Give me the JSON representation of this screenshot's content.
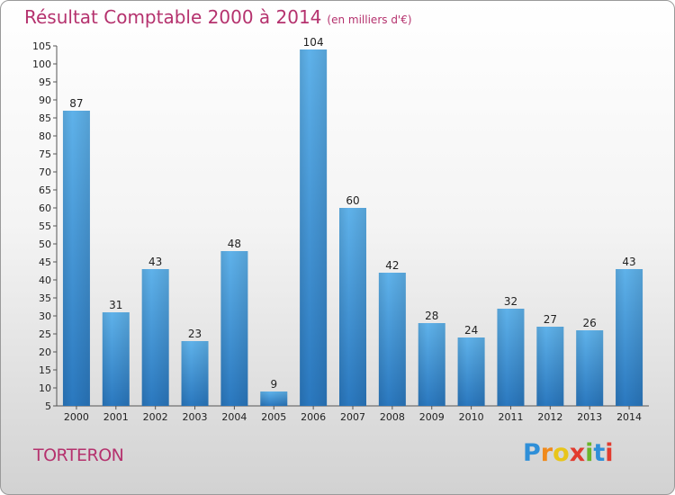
{
  "chart_data": {
    "type": "bar",
    "title": "Résultat Comptable 2000 à 2014",
    "subtitle": "(en milliers d'€)",
    "categories": [
      "2000",
      "2001",
      "2002",
      "2003",
      "2004",
      "2005",
      "2006",
      "2007",
      "2008",
      "2009",
      "2010",
      "2011",
      "2012",
      "2013",
      "2014"
    ],
    "values": [
      87,
      31,
      43,
      23,
      48,
      9,
      104,
      60,
      42,
      28,
      24,
      32,
      27,
      26,
      43
    ],
    "ylim": [
      5,
      105
    ],
    "yticks": [
      5,
      10,
      15,
      20,
      25,
      30,
      35,
      40,
      45,
      50,
      55,
      60,
      65,
      70,
      75,
      80,
      85,
      90,
      95,
      100,
      105
    ],
    "grid": false,
    "bar_color": "#3f97d8"
  },
  "town": "TORTERON",
  "brand": {
    "letters": [
      "P",
      "r",
      "o",
      "x",
      "i",
      "t",
      "i"
    ],
    "colors": [
      "#2f8fd8",
      "#f08a1c",
      "#e8c51a",
      "#e23b2f",
      "#6bb52a",
      "#2f8fd8",
      "#e23b2f"
    ]
  },
  "colors": {
    "accent": "#b5326e"
  }
}
